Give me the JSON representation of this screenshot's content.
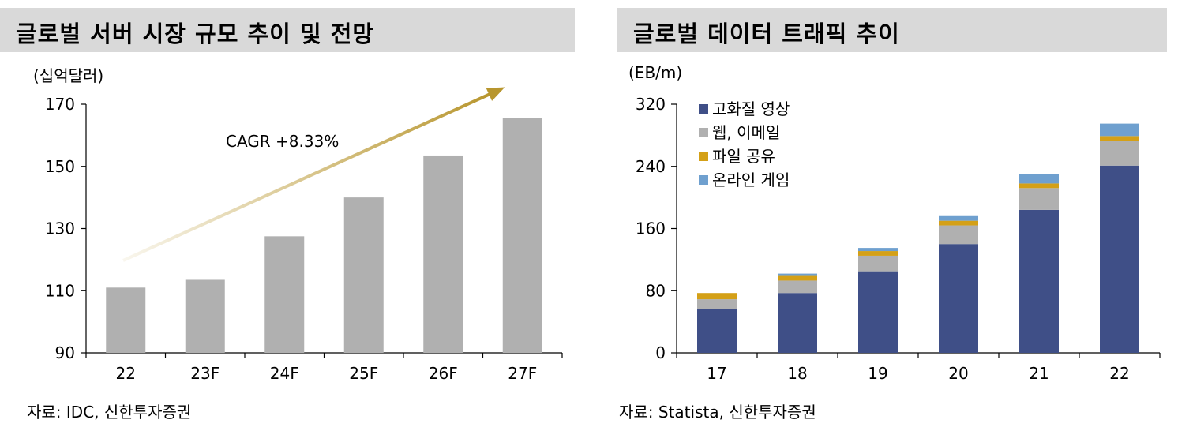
{
  "chart_data": [
    {
      "type": "bar",
      "title": "글로벌 서버 시장 규모 추이 및 전망",
      "unit": "(십억달러)",
      "categories": [
        "22",
        "23F",
        "24F",
        "25F",
        "26F",
        "27F"
      ],
      "values": [
        111,
        113.5,
        127.5,
        140,
        153.5,
        165.5
      ],
      "ylim": [
        90,
        170
      ],
      "yticks": [
        "90",
        "110",
        "130",
        "150",
        "170"
      ],
      "annotation": "CAGR +8.33%",
      "bar_color": "#b0b0b0",
      "arrow_color": "#b8962e",
      "source": "자료: IDC, 신한투자증권"
    },
    {
      "type": "bar",
      "stacked": true,
      "title": "글로벌 데이터 트래픽 추이",
      "unit": "(EB/m)",
      "categories": [
        "17",
        "18",
        "19",
        "20",
        "21",
        "22"
      ],
      "ylim": [
        0,
        320
      ],
      "yticks": [
        "0",
        "80",
        "160",
        "240",
        "320"
      ],
      "series": [
        {
          "name": "고화질 영상",
          "color": "#3f4f87",
          "values": [
            56,
            77,
            105,
            140,
            184,
            241
          ]
        },
        {
          "name": "웹, 이메일",
          "color": "#b0b0b0",
          "values": [
            13,
            16,
            20,
            24,
            28,
            32
          ]
        },
        {
          "name": "파일 공유",
          "color": "#d4a017",
          "values": [
            8,
            6,
            6,
            6,
            6,
            6
          ]
        },
        {
          "name": "온라인 게임",
          "color": "#6fa0cf",
          "values": [
            0,
            3,
            4,
            6,
            12,
            16
          ]
        }
      ],
      "source": "자료: Statista, 신한투자증권"
    }
  ]
}
